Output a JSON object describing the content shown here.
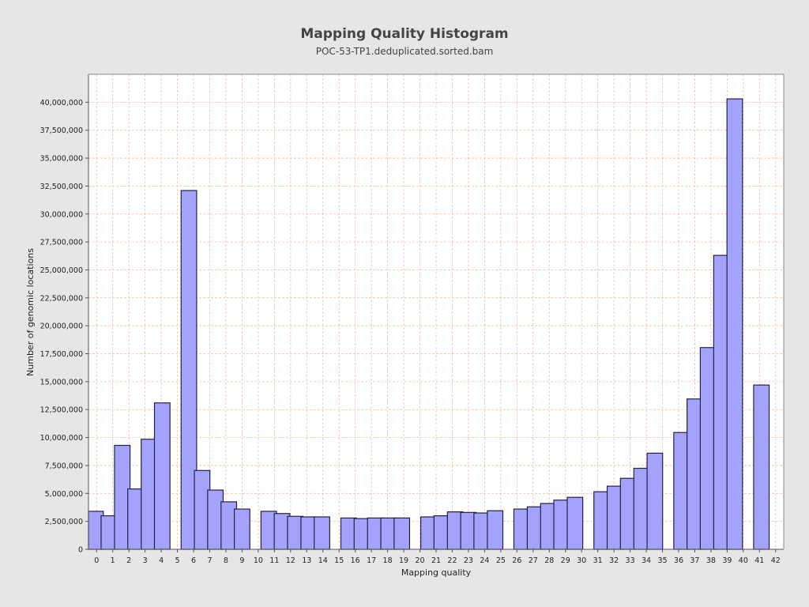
{
  "chart_data": {
    "type": "bar",
    "title": "Mapping Quality Histogram",
    "subtitle": "POC-53-TP1.deduplicated.sorted.bam",
    "xlabel": "Mapping quality",
    "ylabel": "Number of genomic locations",
    "xlim": [
      -0.5,
      42.5
    ],
    "ylim": [
      0,
      42500000
    ],
    "x_ticks": [
      0,
      1,
      2,
      3,
      4,
      5,
      6,
      7,
      8,
      9,
      10,
      11,
      12,
      13,
      14,
      15,
      16,
      17,
      18,
      19,
      20,
      21,
      22,
      23,
      24,
      25,
      26,
      27,
      28,
      29,
      30,
      31,
      32,
      33,
      34,
      35,
      36,
      37,
      38,
      39,
      40,
      41,
      42
    ],
    "y_ticks": [
      0,
      2500000,
      5000000,
      7500000,
      10000000,
      12500000,
      15000000,
      17500000,
      20000000,
      22500000,
      25000000,
      27500000,
      30000000,
      32500000,
      35000000,
      37500000,
      40000000
    ],
    "y_tick_labels": [
      "0",
      "2,500,000",
      "5,000,000",
      "7,500,000",
      "10,000,000",
      "12,500,000",
      "15,000,000",
      "17,500,000",
      "20,000,000",
      "22,500,000",
      "25,000,000",
      "27,500,000",
      "30,000,000",
      "32,500,000",
      "35,000,000",
      "37,500,000",
      "40,000,000"
    ],
    "grid": true,
    "bar_color": "#a3a3fb",
    "bar_edge_color": "#222244",
    "grid_color": "#f2bfa0",
    "plot_background": "#ffffff",
    "points": [
      {
        "x": -0.06,
        "y": 3400000
      },
      {
        "x": 0.76,
        "y": 3000000
      },
      {
        "x": 1.59,
        "y": 9300000
      },
      {
        "x": 2.41,
        "y": 5400000
      },
      {
        "x": 3.24,
        "y": 9850000
      },
      {
        "x": 4.06,
        "y": 13100000
      },
      {
        "x": 5.71,
        "y": 32100000
      },
      {
        "x": 6.53,
        "y": 7050000
      },
      {
        "x": 7.35,
        "y": 5300000
      },
      {
        "x": 8.18,
        "y": 4250000
      },
      {
        "x": 9.0,
        "y": 3600000
      },
      {
        "x": 10.65,
        "y": 3400000
      },
      {
        "x": 11.47,
        "y": 3200000
      },
      {
        "x": 12.29,
        "y": 2950000
      },
      {
        "x": 13.12,
        "y": 2900000
      },
      {
        "x": 13.94,
        "y": 2900000
      },
      {
        "x": 15.59,
        "y": 2800000
      },
      {
        "x": 16.41,
        "y": 2750000
      },
      {
        "x": 17.24,
        "y": 2800000
      },
      {
        "x": 18.06,
        "y": 2800000
      },
      {
        "x": 18.88,
        "y": 2800000
      },
      {
        "x": 20.53,
        "y": 2900000
      },
      {
        "x": 21.35,
        "y": 3000000
      },
      {
        "x": 22.18,
        "y": 3350000
      },
      {
        "x": 23.0,
        "y": 3300000
      },
      {
        "x": 23.82,
        "y": 3250000
      },
      {
        "x": 24.65,
        "y": 3450000
      },
      {
        "x": 26.29,
        "y": 3600000
      },
      {
        "x": 27.12,
        "y": 3800000
      },
      {
        "x": 27.94,
        "y": 4100000
      },
      {
        "x": 28.76,
        "y": 4400000
      },
      {
        "x": 29.59,
        "y": 4650000
      },
      {
        "x": 31.24,
        "y": 5150000
      },
      {
        "x": 32.06,
        "y": 5650000
      },
      {
        "x": 32.88,
        "y": 6350000
      },
      {
        "x": 33.71,
        "y": 7250000
      },
      {
        "x": 34.53,
        "y": 8600000
      },
      {
        "x": 36.18,
        "y": 10450000
      },
      {
        "x": 37.0,
        "y": 13450000
      },
      {
        "x": 37.82,
        "y": 18050000
      },
      {
        "x": 38.65,
        "y": 26300000
      },
      {
        "x": 39.47,
        "y": 40300000
      },
      {
        "x": 41.12,
        "y": 14700000
      }
    ]
  }
}
